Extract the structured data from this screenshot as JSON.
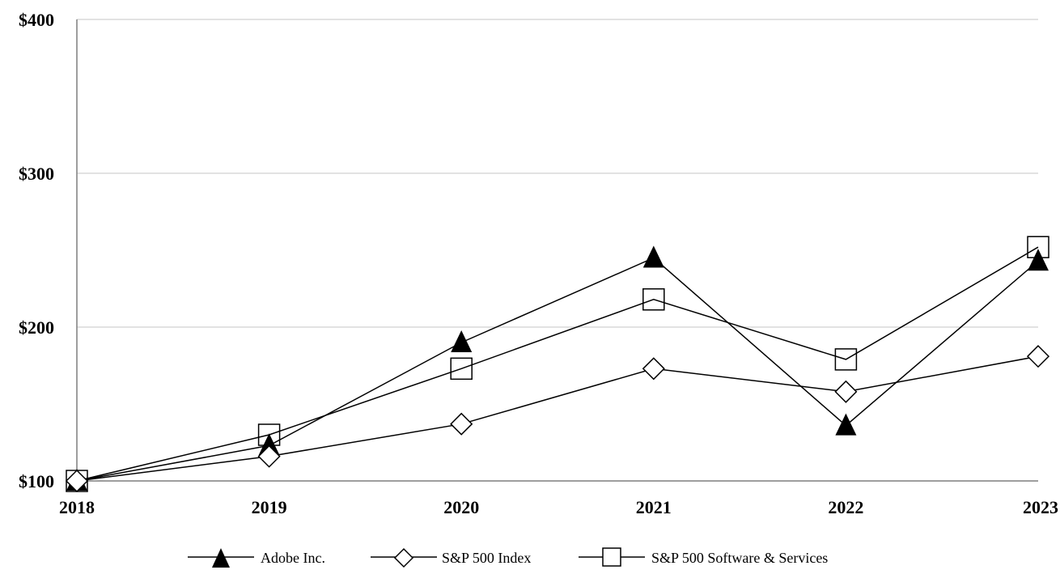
{
  "chart_data": {
    "type": "line",
    "categories": [
      "2018",
      "2019",
      "2020",
      "2021",
      "2022",
      "2023"
    ],
    "series": [
      {
        "name": "Adobe Inc.",
        "marker": "filled-triangle",
        "values": [
          100,
          123,
          190,
          245,
          136,
          243
        ]
      },
      {
        "name": "S&P 500 Index",
        "marker": "open-diamond",
        "values": [
          100,
          116,
          137,
          173,
          158,
          181
        ]
      },
      {
        "name": "S&P 500 Software & Services",
        "marker": "open-square",
        "values": [
          100,
          130,
          173,
          218,
          179,
          252
        ]
      }
    ],
    "y_ticks": [
      "$100",
      "$200",
      "$300",
      "$400"
    ],
    "y_tick_values": [
      100,
      200,
      300,
      400
    ],
    "ylim": [
      100,
      400
    ],
    "grid": "horizontal",
    "legend_position": "bottom",
    "colors": {
      "line": "#000000",
      "grid": "#d9d9d9",
      "axis": "#7f7f7f"
    }
  },
  "legend": {
    "items": [
      {
        "label": "Adobe Inc.",
        "icon": "filled-triangle-icon"
      },
      {
        "label": "S&P 500 Index",
        "icon": "open-diamond-icon"
      },
      {
        "label": "S&P 500 Software & Services",
        "icon": "open-square-icon"
      }
    ]
  }
}
